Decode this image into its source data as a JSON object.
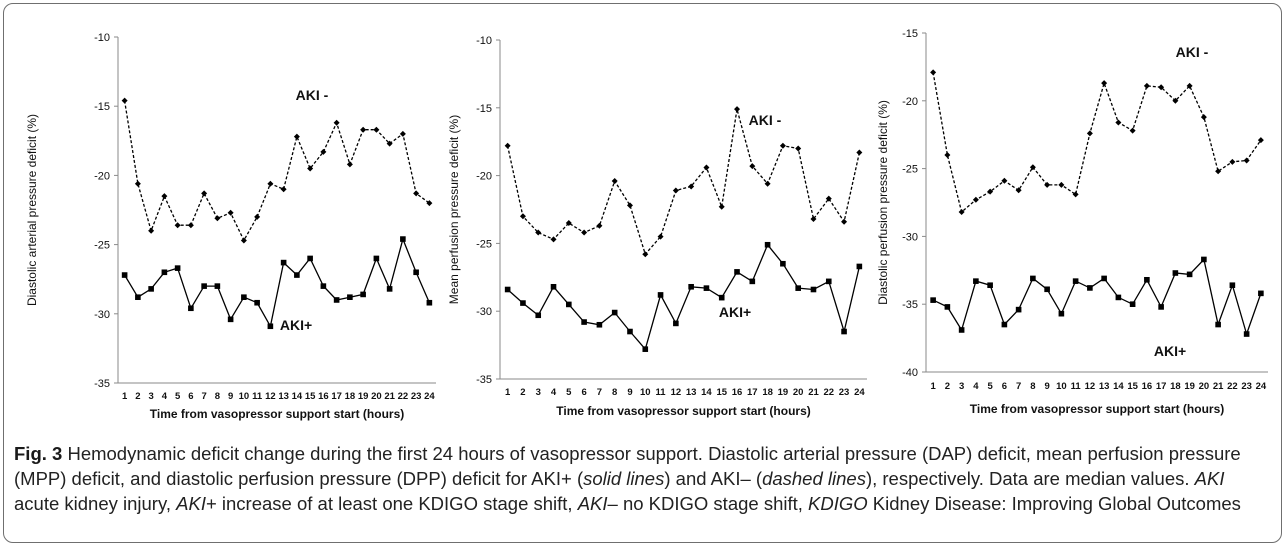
{
  "caption": {
    "figure_label": "Fig. 3",
    "p1": " Hemodynamic deficit change during the first 24 hours of vasopressor support. Diastolic arterial pressure (DAP) deficit, mean perfusion pressure (MPP) deficit, and diastolic perfusion pressure (DPP) deficit for AKI+ (",
    "solid_lines": "solid lines",
    "p2": ") and AKI– (",
    "dashed_lines": "dashed lines",
    "p3": "), respectively. Data are median values. ",
    "abbr_aki": "AKI",
    "def_aki": " acute kidney injury, ",
    "abbr_akiplus": "AKI",
    "def_akiplus": "+ increase of at least one KDIGO stage shift, ",
    "abbr_akiminus": "AKI",
    "def_akiminus": "– no KDIGO stage shift, ",
    "abbr_kdigo": "KDIGO",
    "def_kdigo": " Kidney Disease: Improving Global Outcomes"
  },
  "chart_data": [
    {
      "type": "line",
      "title": "",
      "xlabel": "Time from vasopressor support start (hours)",
      "ylabel": "Diastolic arterial pressure deficit (%)",
      "x": [
        1,
        2,
        3,
        4,
        5,
        6,
        7,
        8,
        9,
        10,
        11,
        12,
        13,
        14,
        15,
        16,
        17,
        18,
        19,
        20,
        21,
        22,
        23,
        24
      ],
      "ylim": [
        -35,
        -10
      ],
      "yticks": [
        -10,
        -15,
        -20,
        -25,
        -30,
        -35
      ],
      "grid": false,
      "series": [
        {
          "name": "AKI -",
          "style": "dashed",
          "marker": "diamond",
          "values": [
            -14.6,
            -20.6,
            -24.0,
            -21.5,
            -23.6,
            -23.6,
            -21.3,
            -23.1,
            -22.7,
            -24.7,
            -23.0,
            -20.6,
            -21.0,
            -17.2,
            -19.5,
            -18.3,
            -16.2,
            -19.2,
            -16.7,
            -16.7,
            -17.7,
            -17.0,
            -21.3,
            -22.0
          ]
        },
        {
          "name": "AKI+",
          "style": "solid",
          "marker": "square",
          "values": [
            -27.2,
            -28.8,
            -28.2,
            -27.0,
            -26.7,
            -29.6,
            -28.0,
            -28.0,
            -30.4,
            -28.8,
            -29.2,
            -30.9,
            -26.3,
            -27.2,
            -26.0,
            -28.0,
            -29.0,
            -28.8,
            -28.6,
            -26.0,
            -28.2,
            -24.6,
            -27.0,
            -29.2
          ]
        }
      ]
    },
    {
      "type": "line",
      "title": "",
      "xlabel": "Time from vasopressor support start (hours)",
      "ylabel": "Mean perfusion pressure deficit (%)",
      "x": [
        1,
        2,
        3,
        4,
        5,
        6,
        7,
        8,
        9,
        10,
        11,
        12,
        13,
        14,
        15,
        16,
        17,
        18,
        19,
        20,
        21,
        22,
        23,
        24
      ],
      "ylim": [
        -35,
        -10
      ],
      "yticks": [
        -10,
        -15,
        -20,
        -25,
        -30,
        -35
      ],
      "grid": false,
      "series": [
        {
          "name": "AKI -",
          "style": "dashed",
          "marker": "diamond",
          "values": [
            -17.8,
            -23.0,
            -24.2,
            -24.7,
            -23.5,
            -24.2,
            -23.7,
            -20.4,
            -22.2,
            -25.8,
            -24.5,
            -21.1,
            -20.8,
            -19.4,
            -22.3,
            -15.1,
            -19.3,
            -20.6,
            -17.8,
            -18.0,
            -23.2,
            -21.7,
            -23.4,
            -18.3
          ]
        },
        {
          "name": "AKI+",
          "style": "solid",
          "marker": "square",
          "values": [
            -28.4,
            -29.4,
            -30.3,
            -28.2,
            -29.5,
            -30.8,
            -31.0,
            -30.1,
            -31.5,
            -32.8,
            -28.8,
            -30.9,
            -28.2,
            -28.3,
            -29.0,
            -27.1,
            -27.8,
            -25.1,
            -26.5,
            -28.3,
            -28.4,
            -27.8,
            -31.5,
            -26.7
          ]
        }
      ]
    },
    {
      "type": "line",
      "title": "",
      "xlabel": "Time from vasopressor support start (hours)",
      "ylabel": "Diastolic perfusion pressure deficit (%)",
      "x": [
        1,
        2,
        3,
        4,
        5,
        6,
        7,
        8,
        9,
        10,
        11,
        12,
        13,
        14,
        15,
        16,
        17,
        18,
        19,
        20,
        21,
        22,
        23,
        24
      ],
      "ylim": [
        -40,
        -15
      ],
      "yticks": [
        -15,
        -20,
        -25,
        -30,
        -35,
        -40
      ],
      "grid": false,
      "series": [
        {
          "name": "AKI -",
          "style": "dashed",
          "marker": "diamond",
          "values": [
            -17.9,
            -24.0,
            -28.2,
            -27.3,
            -26.7,
            -25.9,
            -26.6,
            -24.9,
            -26.2,
            -26.2,
            -26.9,
            -22.4,
            -18.7,
            -21.6,
            -22.2,
            -18.9,
            -19.0,
            -20.0,
            -18.9,
            -21.2,
            -25.2,
            -24.5,
            -24.4,
            -22.9
          ]
        },
        {
          "name": "AKI+",
          "style": "solid",
          "marker": "square",
          "values": [
            -34.7,
            -35.2,
            -36.9,
            -33.3,
            -33.6,
            -36.5,
            -35.4,
            -33.1,
            -33.9,
            -35.7,
            -33.3,
            -33.8,
            -33.1,
            -34.5,
            -35.0,
            -33.2,
            -35.2,
            -32.7,
            -32.8,
            -31.7,
            -36.5,
            -33.6,
            -37.2,
            -34.2
          ]
        }
      ]
    }
  ]
}
